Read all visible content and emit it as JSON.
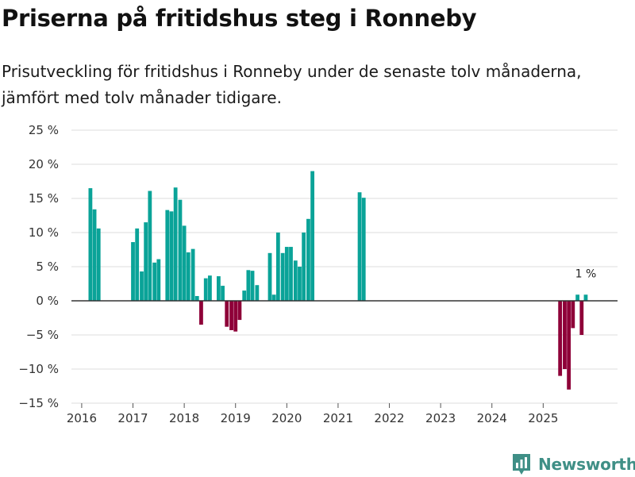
{
  "header": {
    "title": "Priserna på fritidshus steg i Ronneby",
    "subtitle": "Prisutveckling för fritidshus i Ronneby under de senaste tolv månaderna, jämfört med tolv månader tidigare."
  },
  "brand": {
    "name": "Newsworthy"
  },
  "colors": {
    "positive": "#0aa398",
    "negative": "#8e0038",
    "grid": "#dddddd",
    "zero_line": "#333333",
    "brand": "#3f8f86"
  },
  "chart_data": {
    "type": "bar",
    "title": "Priserna på fritidshus steg i Ronneby",
    "subtitle": "Prisutveckling för fritidshus i Ronneby under de senaste tolv månaderna, jämfört med tolv månader tidigare.",
    "xlabel": "",
    "ylabel": "",
    "unit": "%",
    "ylim": [
      -15,
      25
    ],
    "y_ticks": [
      -15,
      -10,
      -5,
      0,
      5,
      10,
      15,
      20,
      25
    ],
    "y_tick_labels": [
      "−15 %",
      "−10 %",
      "−5 %",
      "0 %",
      "5 %",
      "10 %",
      "15 %",
      "20 %",
      "25 %"
    ],
    "x_range": [
      2015.8,
      2026.45
    ],
    "x_ticks": [
      2016,
      2017,
      2018,
      2019,
      2020,
      2021,
      2022,
      2023,
      2024,
      2025
    ],
    "x_tick_labels": [
      "2016",
      "2017",
      "2018",
      "2019",
      "2020",
      "2021",
      "2022",
      "2023",
      "2024",
      "2025"
    ],
    "grid": true,
    "points": [
      {
        "x": 2016.17,
        "y": 16.5
      },
      {
        "x": 2016.25,
        "y": 13.4
      },
      {
        "x": 2016.33,
        "y": 10.6
      },
      {
        "x": 2017.0,
        "y": 8.6
      },
      {
        "x": 2017.08,
        "y": 10.6
      },
      {
        "x": 2017.17,
        "y": 4.3
      },
      {
        "x": 2017.25,
        "y": 11.5
      },
      {
        "x": 2017.33,
        "y": 16.1
      },
      {
        "x": 2017.42,
        "y": 5.6
      },
      {
        "x": 2017.5,
        "y": 6.1
      },
      {
        "x": 2017.67,
        "y": 13.3
      },
      {
        "x": 2017.75,
        "y": 13.1
      },
      {
        "x": 2017.83,
        "y": 16.6
      },
      {
        "x": 2017.92,
        "y": 14.8
      },
      {
        "x": 2018.0,
        "y": 11.0
      },
      {
        "x": 2018.08,
        "y": 7.1
      },
      {
        "x": 2018.17,
        "y": 7.6
      },
      {
        "x": 2018.25,
        "y": 0.7
      },
      {
        "x": 2018.33,
        "y": -3.5
      },
      {
        "x": 2018.42,
        "y": 3.3
      },
      {
        "x": 2018.5,
        "y": 3.7
      },
      {
        "x": 2018.67,
        "y": 3.6
      },
      {
        "x": 2018.75,
        "y": 2.2
      },
      {
        "x": 2018.83,
        "y": -3.8
      },
      {
        "x": 2018.92,
        "y": -4.3
      },
      {
        "x": 2019.0,
        "y": -4.5
      },
      {
        "x": 2019.08,
        "y": -2.8
      },
      {
        "x": 2019.17,
        "y": 1.5
      },
      {
        "x": 2019.25,
        "y": 4.5
      },
      {
        "x": 2019.33,
        "y": 4.4
      },
      {
        "x": 2019.42,
        "y": 2.3
      },
      {
        "x": 2019.67,
        "y": 7.0
      },
      {
        "x": 2019.75,
        "y": 0.9
      },
      {
        "x": 2019.83,
        "y": 10.0
      },
      {
        "x": 2019.92,
        "y": 7.0
      },
      {
        "x": 2020.0,
        "y": 7.9
      },
      {
        "x": 2020.08,
        "y": 7.9
      },
      {
        "x": 2020.17,
        "y": 5.9
      },
      {
        "x": 2020.25,
        "y": 5.0
      },
      {
        "x": 2020.33,
        "y": 10.0
      },
      {
        "x": 2020.42,
        "y": 12.0
      },
      {
        "x": 2020.5,
        "y": 19.0
      },
      {
        "x": 2021.42,
        "y": 15.9
      },
      {
        "x": 2021.5,
        "y": 15.1
      },
      {
        "x": 2025.33,
        "y": -11.0
      },
      {
        "x": 2025.42,
        "y": -10.0
      },
      {
        "x": 2025.5,
        "y": -13.0
      },
      {
        "x": 2025.58,
        "y": -4.0
      },
      {
        "x": 2025.67,
        "y": 0.9
      },
      {
        "x": 2025.75,
        "y": -5.0
      },
      {
        "x": 2025.83,
        "y": 0.9
      }
    ],
    "annotations": [
      {
        "text": "1 %",
        "x": 2025.83,
        "y": 0.9
      }
    ]
  }
}
